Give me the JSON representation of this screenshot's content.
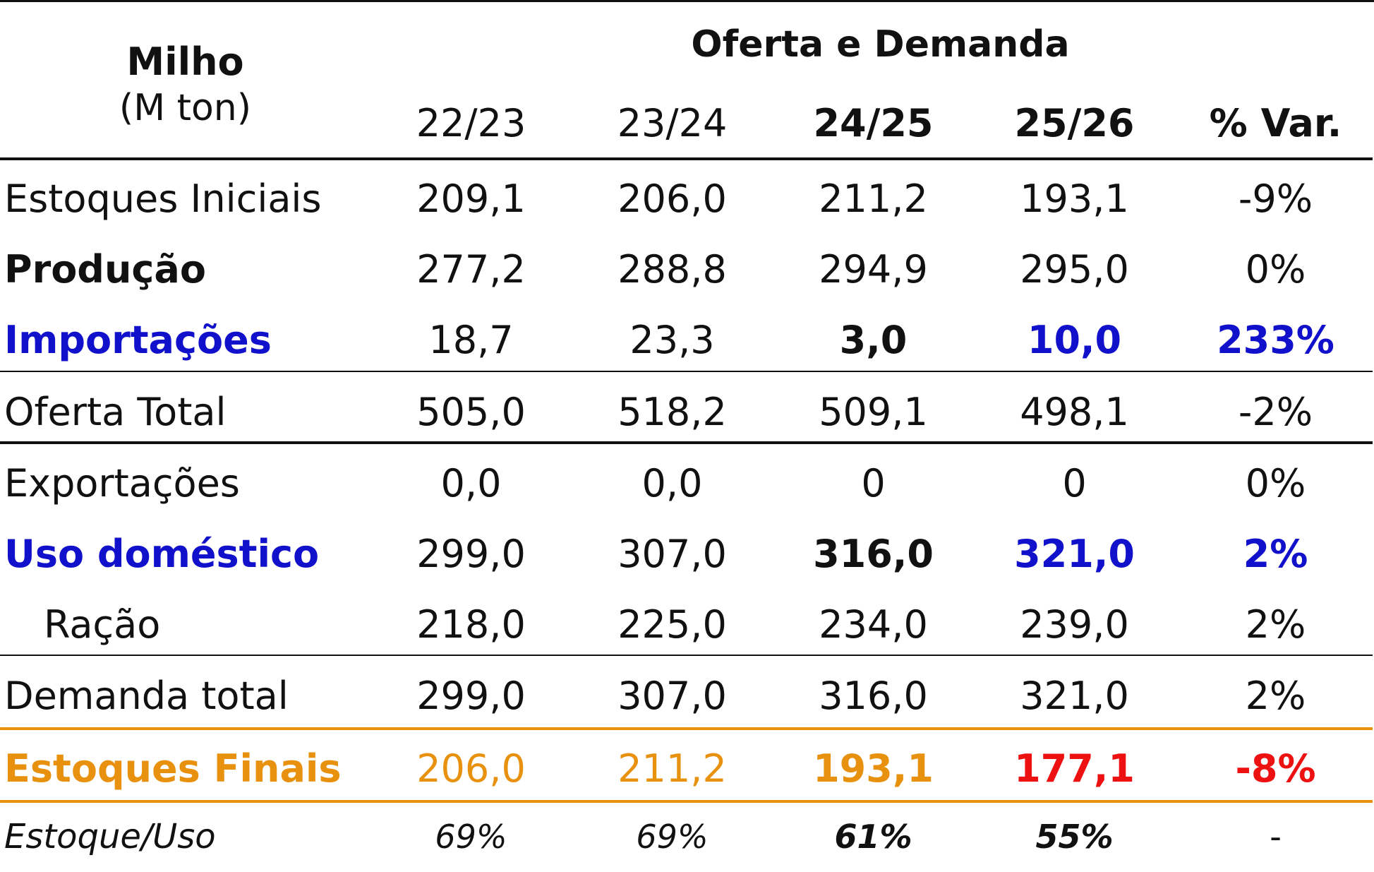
{
  "header": {
    "product": "Milho",
    "unit": "(M ton)",
    "group_title": "Oferta e Demanda",
    "columns": [
      "22/23",
      "23/24",
      "24/25",
      "25/26",
      "% Var."
    ]
  },
  "rows": [
    {
      "label": "Estoques Iniciais",
      "values": [
        "209,1",
        "206,0",
        "211,2",
        "193,1",
        "-9%"
      ]
    },
    {
      "label": "Produção",
      "values": [
        "277,2",
        "288,8",
        "294,9",
        "295,0",
        "0%"
      ]
    },
    {
      "label": "Importações",
      "values": [
        "18,7",
        "23,3",
        "3,0",
        "10,0",
        "233%"
      ]
    },
    {
      "label": "Oferta Total",
      "values": [
        "505,0",
        "518,2",
        "509,1",
        "498,1",
        "-2%"
      ]
    },
    {
      "label": "Exportações",
      "values": [
        "0,0",
        "0,0",
        "0",
        "0",
        "0%"
      ]
    },
    {
      "label": "Uso doméstico",
      "values": [
        "299,0",
        "307,0",
        "316,0",
        "321,0",
        "2%"
      ]
    },
    {
      "label": "Ração",
      "values": [
        "218,0",
        "225,0",
        "234,0",
        "239,0",
        "2%"
      ]
    },
    {
      "label": "Demanda total",
      "values": [
        "299,0",
        "307,0",
        "316,0",
        "321,0",
        "2%"
      ]
    },
    {
      "label": "Estoques Finais",
      "values": [
        "206,0",
        "211,2",
        "193,1",
        "177,1",
        "-8%"
      ]
    },
    {
      "label": "Estoque/Uso",
      "values": [
        "69%",
        "69%",
        "61%",
        "55%",
        "-"
      ]
    }
  ],
  "colors": {
    "blue": "#1111CC",
    "orange": "#E8910F",
    "red": "#EE1111",
    "text": "#111111"
  }
}
